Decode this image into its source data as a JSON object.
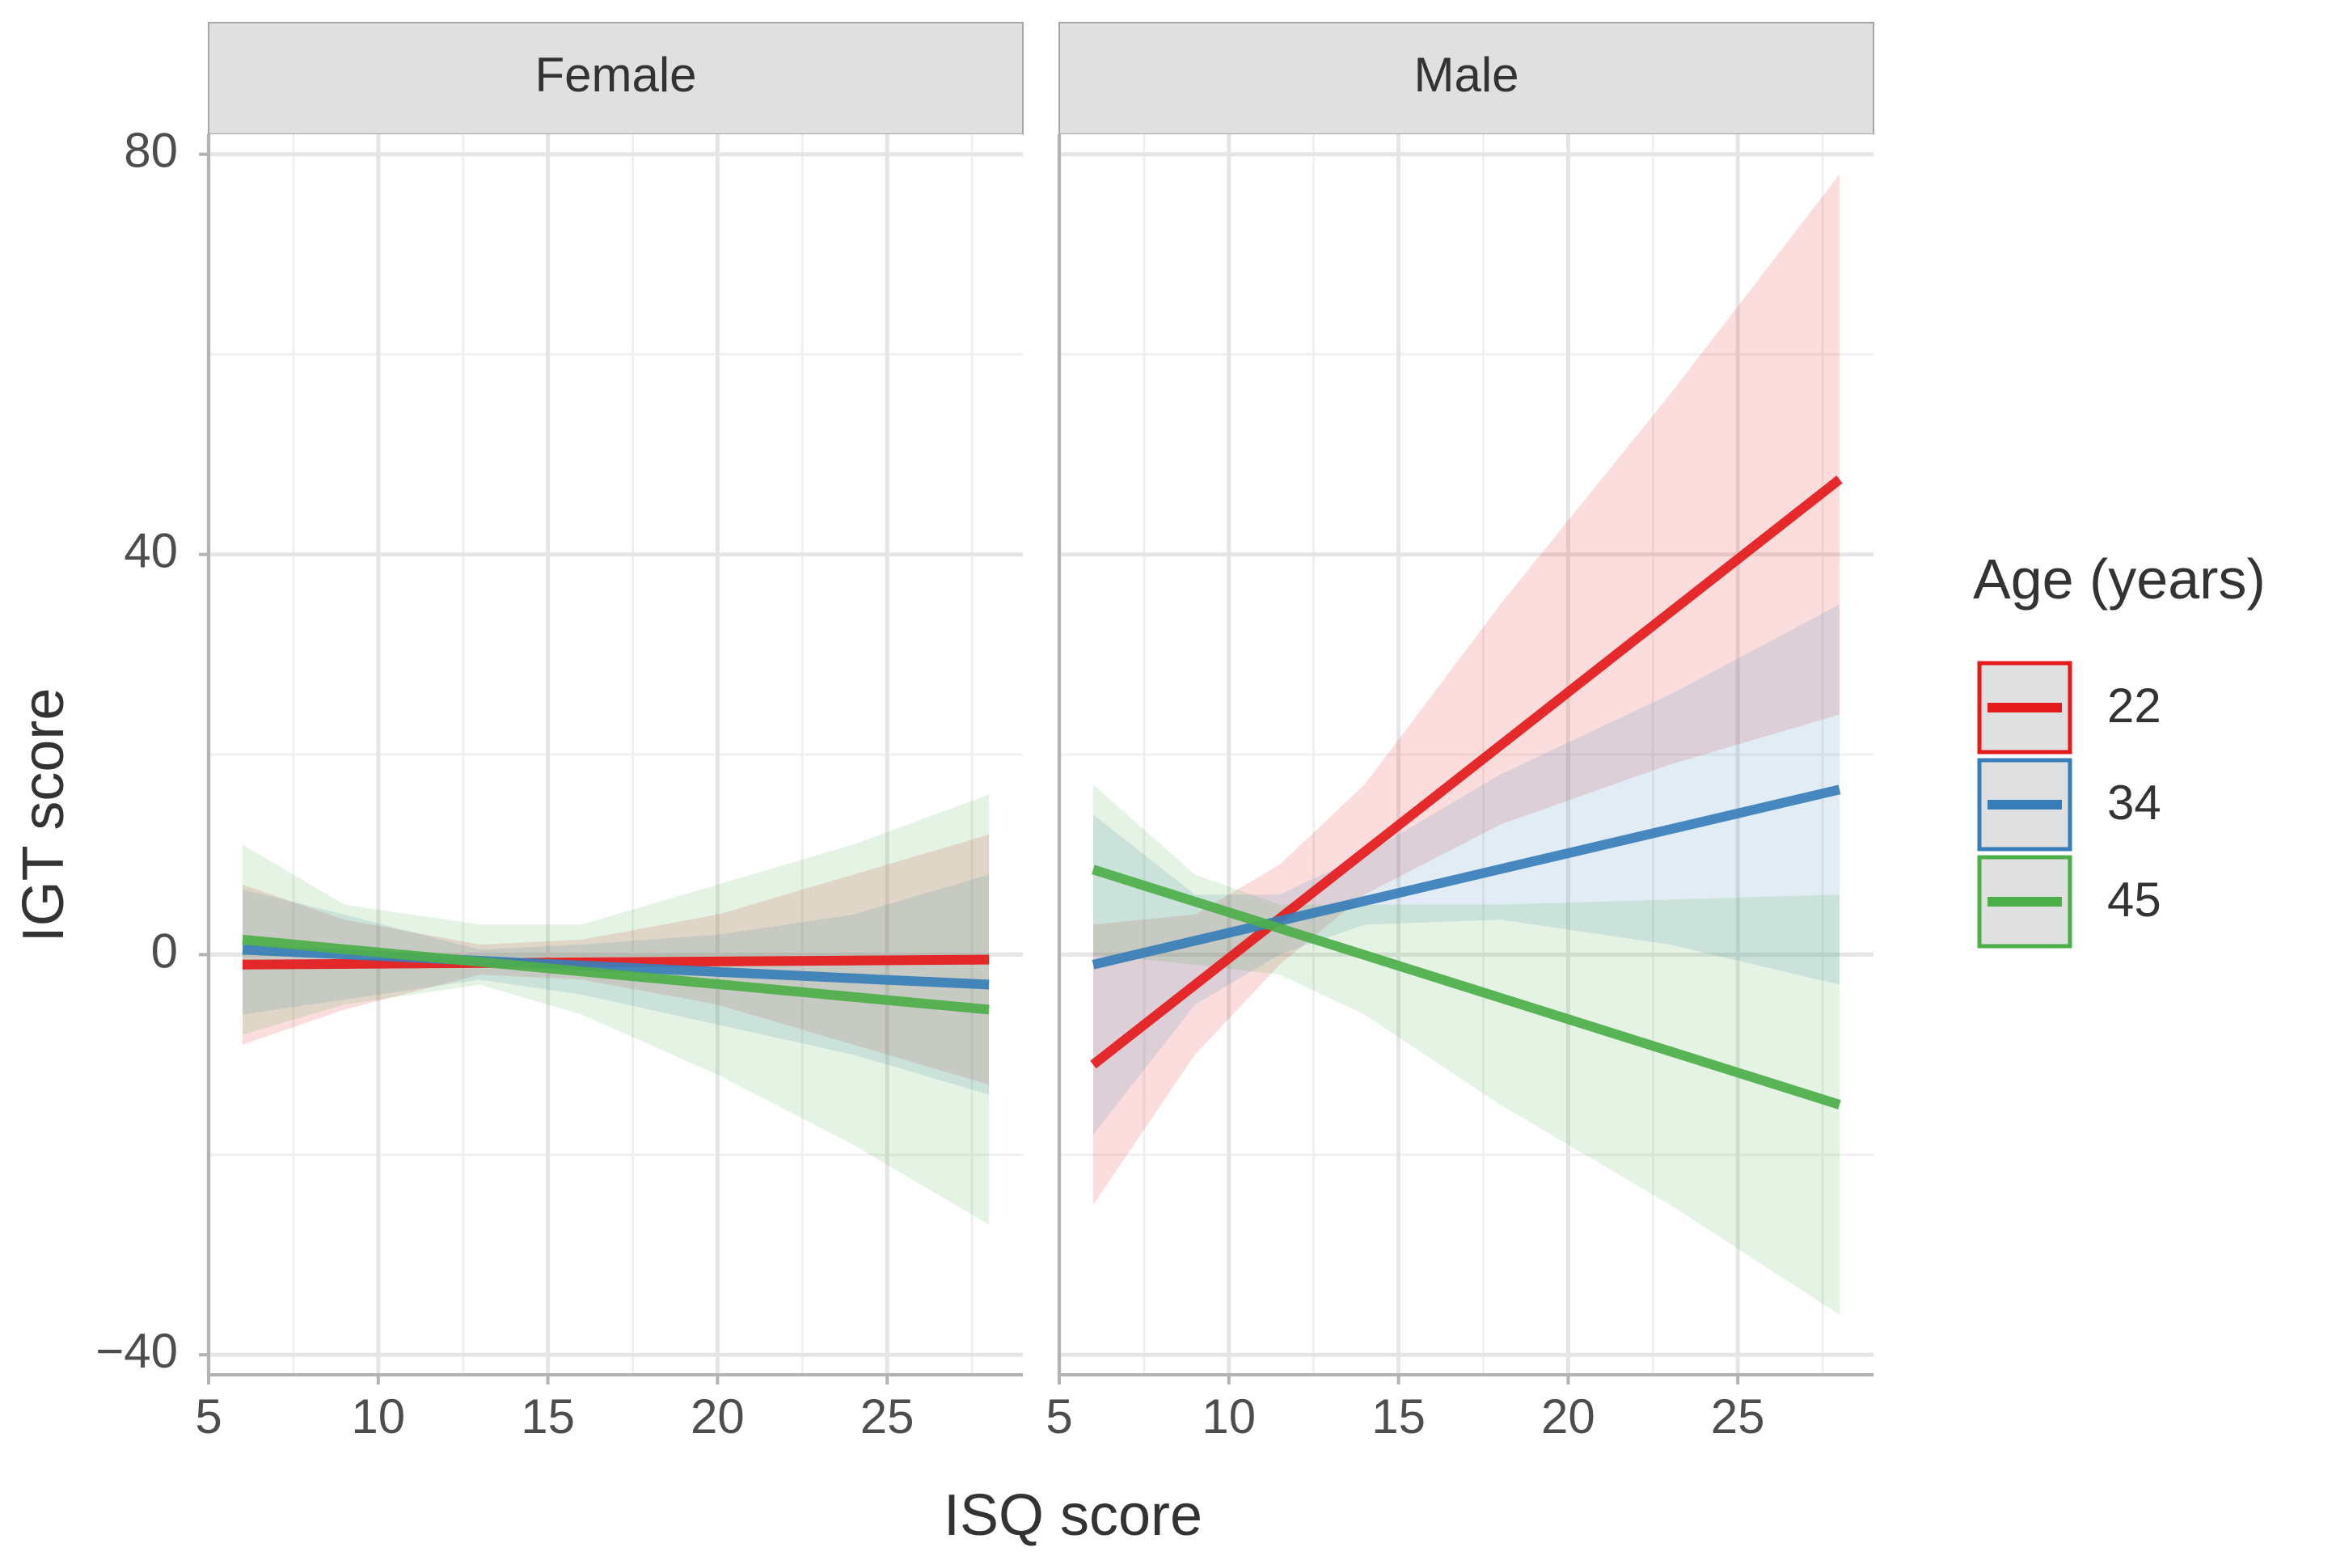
{
  "chart_data": {
    "type": "line",
    "xlabel": "ISQ score",
    "ylabel": "IGT score",
    "xlim": [
      5,
      29
    ],
    "ylim": [
      -42,
      82
    ],
    "x_ticks": [
      5,
      10,
      15,
      20,
      25
    ],
    "x_tick_labels": [
      "5",
      "10",
      "15",
      "20",
      "25"
    ],
    "y_ticks": [
      -40,
      0,
      40,
      80
    ],
    "y_tick_labels": [
      "−40",
      "0",
      "40",
      "80"
    ],
    "grid": true,
    "legend": {
      "title": "Age (years)",
      "position": "right",
      "entries": [
        {
          "label": "22",
          "color": "#e41a1c"
        },
        {
          "label": "34",
          "color": "#377eb8"
        },
        {
          "label": "45",
          "color": "#4daf4a"
        }
      ]
    },
    "panels": [
      {
        "label": "Female",
        "series": [
          {
            "name": "22",
            "color": "#e41a1c",
            "x": [
              6,
              28
            ],
            "y": [
              -1.0,
              -0.5
            ],
            "band_x": [
              6,
              9,
              13,
              16,
              20,
              24,
              28
            ],
            "band_lower": [
              -9,
              -5.5,
              -2,
              -2.5,
              -5,
              -9,
              -13
            ],
            "band_upper": [
              7,
              3.5,
              1,
              1.5,
              4,
              8,
              12
            ]
          },
          {
            "name": "34",
            "color": "#377eb8",
            "x": [
              6,
              28
            ],
            "y": [
              0.5,
              -3.0
            ],
            "band_x": [
              6,
              9,
              13,
              16,
              20,
              24,
              28
            ],
            "band_lower": [
              -6,
              -4.5,
              -2.5,
              -4,
              -7,
              -10,
              -14
            ],
            "band_upper": [
              6.5,
              4,
              0.5,
              1,
              2,
              4,
              8
            ]
          },
          {
            "name": "45",
            "color": "#4daf4a",
            "x": [
              6,
              28
            ],
            "y": [
              1.5,
              -5.5
            ],
            "band_x": [
              6,
              9,
              13,
              16,
              20,
              24,
              28
            ],
            "band_lower": [
              -8,
              -5,
              -3,
              -6,
              -12,
              -19,
              -27
            ],
            "band_upper": [
              11,
              5,
              3,
              3,
              7,
              11,
              16
            ]
          }
        ]
      },
      {
        "label": "Male",
        "series": [
          {
            "name": "22",
            "color": "#e41a1c",
            "x": [
              6,
              28
            ],
            "y": [
              -11,
              47.5
            ],
            "band_x": [
              6,
              9,
              11.5,
              14,
              18,
              23,
              28
            ],
            "band_lower": [
              -25,
              -10,
              -1,
              6,
              13,
              19,
              24
            ],
            "band_upper": [
              3,
              4,
              9,
              17,
              35,
              56,
              78
            ]
          },
          {
            "name": "34",
            "color": "#377eb8",
            "x": [
              6,
              28
            ],
            "y": [
              -1,
              16.5
            ],
            "band_x": [
              6,
              9,
              11.5,
              14,
              18,
              23,
              28
            ],
            "band_lower": [
              -18,
              -5,
              0,
              3,
              3.5,
              1,
              -3
            ],
            "band_upper": [
              14,
              6,
              6,
              10,
              18,
              26,
              35
            ]
          },
          {
            "name": "45",
            "color": "#4daf4a",
            "x": [
              6,
              28
            ],
            "y": [
              8.5,
              -15
            ],
            "band_x": [
              6,
              9,
              11.5,
              14,
              18,
              23,
              28
            ],
            "band_lower": [
              0,
              -1,
              -2,
              -6,
              -15,
              -25,
              -36
            ],
            "band_upper": [
              17,
              8,
              5,
              5,
              5,
              5.5,
              6
            ]
          }
        ]
      }
    ]
  }
}
